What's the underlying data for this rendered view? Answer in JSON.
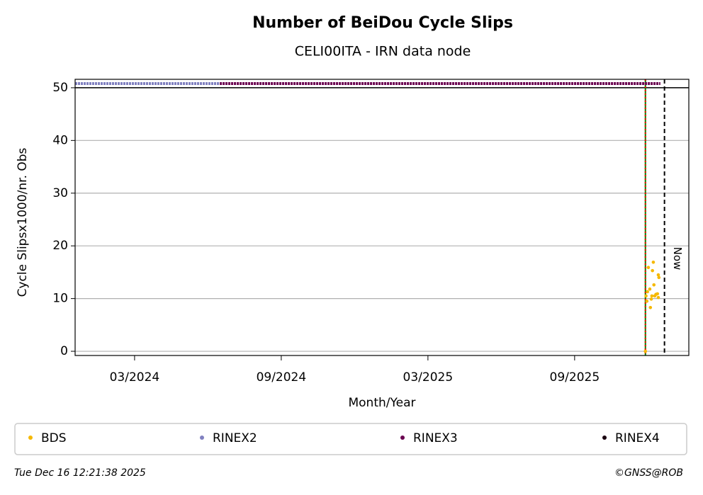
{
  "chart_data": {
    "type": "scatter",
    "title": "Number of BeiDou Cycle Slips",
    "subtitle": "CELI00ITA - IRN data node",
    "xlabel": "Month/Year",
    "ylabel": "Cycle Slipsx1000/nr. Obs",
    "xlim": [
      2023.964,
      2026.056
    ],
    "ylim": [
      -0.8,
      51.6
    ],
    "xticks": [
      {
        "value": 2024.1667,
        "label": "03/2024"
      },
      {
        "value": 2024.6667,
        "label": "09/2024"
      },
      {
        "value": 2025.1667,
        "label": "03/2025"
      },
      {
        "value": 2025.6667,
        "label": "09/2025"
      }
    ],
    "yticks": [
      0,
      10,
      20,
      30,
      40,
      50
    ],
    "grid": true,
    "series": [
      {
        "name": "BDS",
        "color": "#f5b800",
        "style": "points",
        "x": [
          2025.908,
          2025.91,
          2025.913,
          2025.915,
          2025.918,
          2025.923,
          2025.925,
          2025.928,
          2025.93,
          2025.932,
          2025.935,
          2025.937,
          2025.94,
          2025.944,
          2025.949,
          2025.952,
          2025.954,
          2025.952
        ],
        "values": [
          0,
          10.5,
          9.5,
          11.3,
          15.9,
          11.8,
          8.3,
          9.9,
          10.5,
          15.3,
          16.9,
          12.6,
          10.5,
          10.8,
          10.9,
          14.5,
          14,
          10.2
        ]
      },
      {
        "name": "RINEX2",
        "color": "#8080c0",
        "style": "dotted",
        "x": [
          2023.964,
          2024.457
        ],
        "values": [
          50.8,
          50.8
        ]
      },
      {
        "name": "RINEX3",
        "color": "#6a0050",
        "style": "dotted",
        "x": [
          2024.457,
          2025.959
        ],
        "values": [
          50.8,
          50.8
        ]
      },
      {
        "name": "RINEX4",
        "color": "#1a0010",
        "style": "points",
        "x": [],
        "values": []
      }
    ],
    "hlines": [
      {
        "value": 50,
        "color": "#000000"
      }
    ],
    "vlines": [
      {
        "x": 2025.908,
        "color": "#008000",
        "style": "solid"
      },
      {
        "x": 2025.908,
        "color": "#ff0000",
        "style": "dotted"
      },
      {
        "x": 2025.973,
        "color": "#000000",
        "style": "dashed",
        "label": "Now"
      }
    ],
    "timestamp": "Tue Dec 16 12:21:38 2025",
    "credit": "©GNSS@ROB"
  }
}
